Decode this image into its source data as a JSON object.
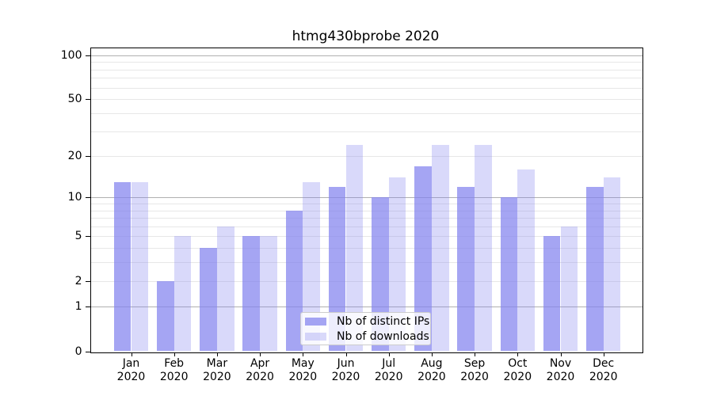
{
  "title": "htmg430bprobe 2020",
  "legend": {
    "items": [
      {
        "label": "Nb of distinct IPs",
        "series_key": "distinct_ips"
      },
      {
        "label": "Nb of downloads",
        "series_key": "downloads"
      }
    ]
  },
  "chart_data": {
    "type": "bar",
    "title": "htmg430bprobe 2020",
    "categories": [
      "Jan 2020",
      "Feb 2020",
      "Mar 2020",
      "Apr 2020",
      "May 2020",
      "Jun 2020",
      "Jul 2020",
      "Aug 2020",
      "Sep 2020",
      "Oct 2020",
      "Nov 2020",
      "Dec 2020"
    ],
    "x_tick_month_line": [
      "Jan",
      "Feb",
      "Mar",
      "Apr",
      "May",
      "Jun",
      "Jul",
      "Aug",
      "Sep",
      "Oct",
      "Nov",
      "Dec"
    ],
    "x_tick_year_line": "2020",
    "series": [
      {
        "name": "Nb of distinct IPs",
        "values": [
          13,
          2,
          4,
          5,
          8,
          12,
          10,
          17,
          12,
          10,
          5,
          12
        ]
      },
      {
        "name": "Nb of downloads",
        "values": [
          13,
          5,
          6,
          5,
          13,
          24,
          14,
          24,
          24,
          16,
          6,
          14
        ]
      }
    ],
    "xlabel": "",
    "ylabel": "",
    "yscale": "log10(1+y)",
    "y_tick_labels": [
      0,
      1,
      2,
      5,
      10,
      20,
      50,
      100
    ],
    "y_major_gridlines": [
      1,
      10,
      100
    ],
    "y_minor_gridlines": [
      2,
      3,
      4,
      5,
      6,
      7,
      8,
      9,
      20,
      30,
      40,
      50,
      60,
      70,
      80,
      90
    ],
    "ylim": [
      0,
      113
    ],
    "grid": true,
    "legend_position": "lower center"
  },
  "colors": {
    "bar_distinct_ips": "rgba(130,130,238,0.72)",
    "bar_downloads": "rgba(130,130,238,0.30)",
    "grid_major": "#b0b0b0",
    "grid_minor": "#e7e7e7",
    "axis": "#000000",
    "text": "#000000",
    "legend_border": "#cccccc",
    "legend_bg": "rgba(255,255,255,0.8)"
  }
}
